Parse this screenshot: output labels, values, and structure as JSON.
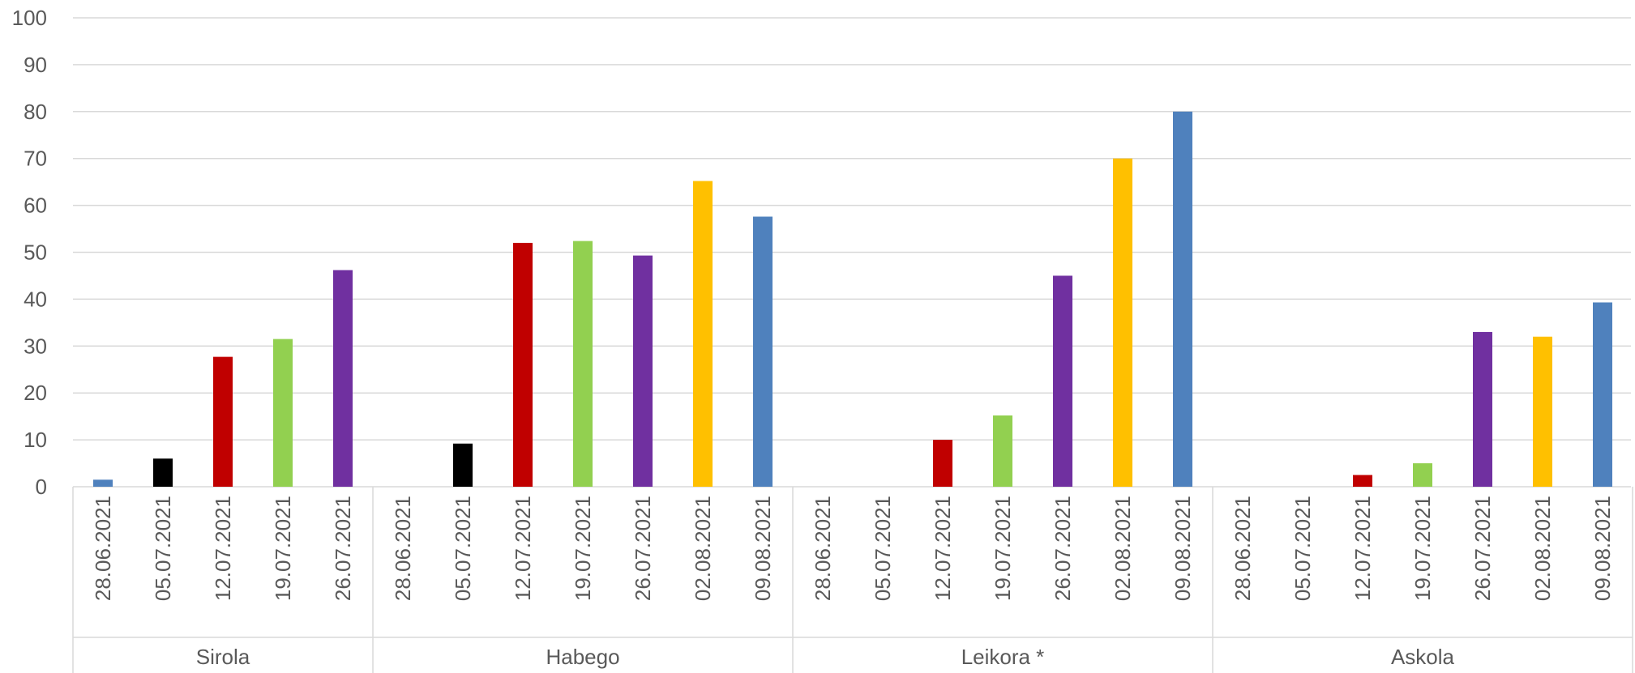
{
  "chart_data": {
    "type": "bar",
    "groups": [
      {
        "name": "Sirola",
        "bars": [
          {
            "label": "28.06.2021",
            "value": 1.5
          },
          {
            "label": "05.07.2021",
            "value": 6
          },
          {
            "label": "12.07.2021",
            "value": 27.7
          },
          {
            "label": "19.07.2021",
            "value": 31.5
          },
          {
            "label": "26.07.2021",
            "value": 46.2
          }
        ]
      },
      {
        "name": "Habego",
        "bars": [
          {
            "label": "28.06.2021",
            "value": 0
          },
          {
            "label": "05.07.2021",
            "value": 9.2
          },
          {
            "label": "12.07.2021",
            "value": 52
          },
          {
            "label": "19.07.2021",
            "value": 52.4
          },
          {
            "label": "26.07.2021",
            "value": 49.3
          },
          {
            "label": "02.08.2021",
            "value": 65.2
          },
          {
            "label": "09.08.2021",
            "value": 57.6
          }
        ]
      },
      {
        "name": "Leikora *",
        "bars": [
          {
            "label": "28.06.2021",
            "value": 0
          },
          {
            "label": "05.07.2021",
            "value": 0
          },
          {
            "label": "12.07.2021",
            "value": 10
          },
          {
            "label": "19.07.2021",
            "value": 15.2
          },
          {
            "label": "26.07.2021",
            "value": 45
          },
          {
            "label": "02.08.2021",
            "value": 70
          },
          {
            "label": "09.08.2021",
            "value": 80
          }
        ]
      },
      {
        "name": "Askola",
        "bars": [
          {
            "label": "28.06.2021",
            "value": 0
          },
          {
            "label": "05.07.2021",
            "value": 0
          },
          {
            "label": "12.07.2021",
            "value": 2.5
          },
          {
            "label": "19.07.2021",
            "value": 5
          },
          {
            "label": "26.07.2021",
            "value": 33
          },
          {
            "label": "02.08.2021",
            "value": 32
          },
          {
            "label": "09.08.2021",
            "value": 39.3
          }
        ]
      }
    ],
    "date_colors": {
      "28.06.2021": "#4F81BD",
      "05.07.2021": "#000000",
      "12.07.2021": "#C00000",
      "19.07.2021": "#92D050",
      "26.07.2021": "#7030A0",
      "02.08.2021": "#FFC000",
      "09.08.2021": "#4F81BD"
    },
    "ylim": [
      0,
      100
    ],
    "yticks": [
      0,
      10,
      20,
      30,
      40,
      50,
      60,
      70,
      80,
      90,
      100
    ],
    "grid": true,
    "legend": "none",
    "title": "",
    "xlabel": "",
    "ylabel": ""
  }
}
